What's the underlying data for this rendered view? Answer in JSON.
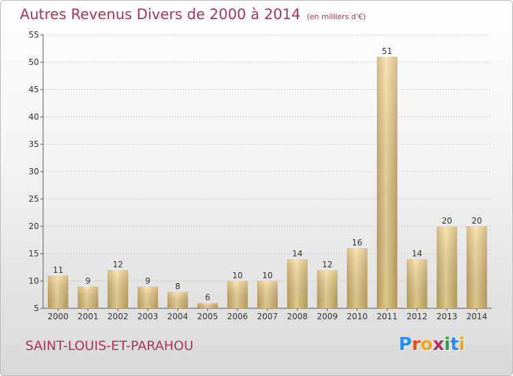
{
  "title": "Autres Revenus Divers de 2000 à 2014",
  "unit_note": "(en milliers d'€)",
  "commune": "SAINT-LOUIS-ET-PARAHOU",
  "logo": {
    "letters": [
      "P",
      "r",
      "o",
      "x",
      "i",
      "t",
      "i"
    ],
    "colors": [
      "#1e90ff",
      "#e84c1a",
      "#f2a516",
      "#b03060",
      "#2e9e3e",
      "#1e90ff",
      "#f2a516"
    ]
  },
  "colors": {
    "title": "#b03060",
    "bar_light": "#f3dc9c",
    "bar_dark": "#c5a862",
    "grid": "#cccccc"
  },
  "chart_data": {
    "type": "bar",
    "title": "Autres Revenus Divers de 2000 à 2014",
    "subtitle": "(en milliers d'€)",
    "categories": [
      "2000",
      "2001",
      "2002",
      "2003",
      "2004",
      "2005",
      "2006",
      "2007",
      "2008",
      "2009",
      "2010",
      "2011",
      "2012",
      "2013",
      "2014"
    ],
    "values": [
      11,
      9,
      12,
      9,
      8,
      6,
      10,
      10,
      14,
      12,
      16,
      51,
      14,
      20,
      20
    ],
    "ylim": [
      5,
      55
    ],
    "yticks": [
      5,
      10,
      15,
      20,
      25,
      30,
      35,
      40,
      45,
      50,
      55
    ],
    "grid": true
  }
}
